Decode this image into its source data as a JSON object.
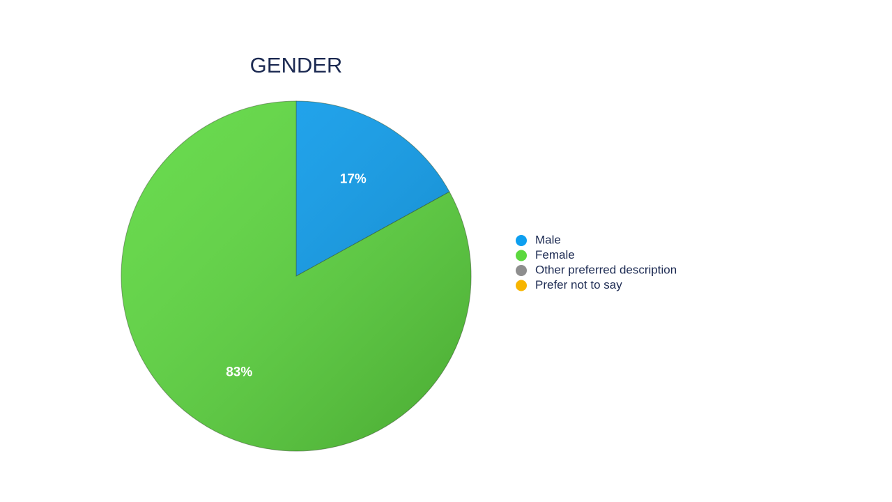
{
  "chart_data": {
    "type": "pie",
    "title": "GENDER",
    "categories": [
      "Male",
      "Female",
      "Other preferred description",
      "Prefer not to say"
    ],
    "values": [
      17,
      83,
      0,
      0
    ],
    "value_labels": [
      "17%",
      "83%",
      null,
      null
    ],
    "colors": [
      "#0d9ff0",
      "#5cd83e",
      "#8e8e8e",
      "#f7b500"
    ],
    "legend": "right"
  }
}
